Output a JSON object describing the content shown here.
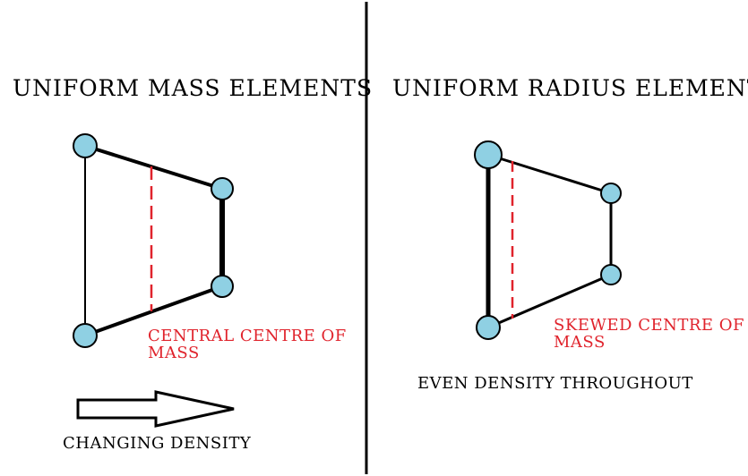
{
  "left_panel": {
    "title": "UNIFORM MASS ELEMENTS",
    "centre_note_line1": "CENTRAL CENTRE OF",
    "centre_note_line2": "MASS",
    "arrow_caption": "CHANGING DENSITY"
  },
  "right_panel": {
    "title": "UNIFORM RADIUS ELEMENTS",
    "centre_note_line1": "SKEWED CENTRE OF",
    "centre_note_line2": "MASS",
    "density_note": "EVEN DENSITY THROUGHOUT"
  },
  "colors": {
    "node_fill": "#8fd0e3",
    "centre_line": "#e0232c",
    "edge": "#000000"
  }
}
